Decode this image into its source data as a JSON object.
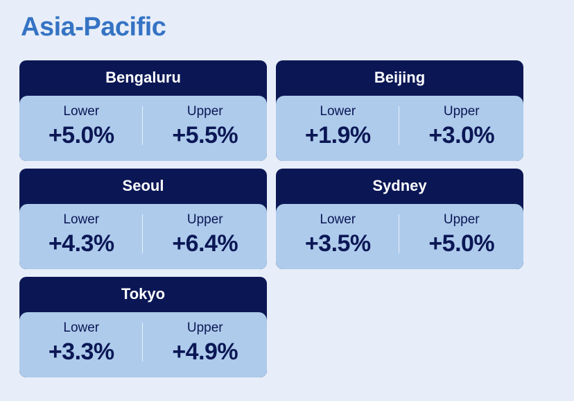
{
  "title": "Asia-Pacific",
  "cards": [
    {
      "city": "Bengaluru",
      "lower": {
        "label": "Lower",
        "value": "+5.0%"
      },
      "upper": {
        "label": "Upper",
        "value": "+5.5%"
      }
    },
    {
      "city": "Beijing",
      "lower": {
        "label": "Lower",
        "value": "+1.9%"
      },
      "upper": {
        "label": "Upper",
        "value": "+3.0%"
      }
    },
    {
      "city": "Seoul",
      "lower": {
        "label": "Lower",
        "value": "+4.3%"
      },
      "upper": {
        "label": "Upper",
        "value": "+6.4%"
      }
    },
    {
      "city": "Sydney",
      "lower": {
        "label": "Lower",
        "value": "+3.5%"
      },
      "upper": {
        "label": "Upper",
        "value": "+5.0%"
      }
    },
    {
      "city": "Tokyo",
      "lower": {
        "label": "Lower",
        "value": "+3.3%"
      },
      "upper": {
        "label": "Upper",
        "value": "+4.9%"
      }
    }
  ]
}
